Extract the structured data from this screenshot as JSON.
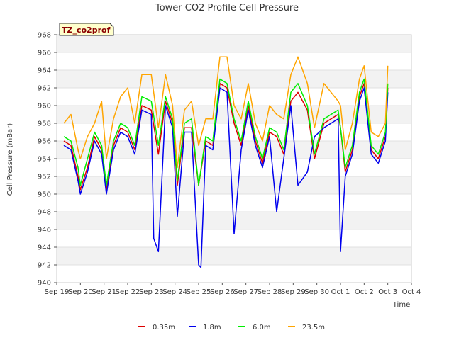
{
  "chart_data": {
    "type": "line",
    "title": "Tower CO2 Profile Cell Pressure",
    "xlabel": "Time",
    "ylabel": "Cell Pressure (mBar)",
    "badge": "TZ_co2prof",
    "ylim": [
      940,
      968
    ],
    "yticks": [
      940,
      942,
      944,
      946,
      948,
      950,
      952,
      954,
      956,
      958,
      960,
      962,
      964,
      966,
      968
    ],
    "xlim": [
      0,
      15
    ],
    "x_unit": "days since Sep 19",
    "xticks": [
      0,
      1,
      2,
      3,
      4,
      5,
      6,
      7,
      8,
      9,
      10,
      11,
      12,
      13,
      14,
      15
    ],
    "xtick_labels": [
      "Sep 19",
      "Sep 20",
      "Sep 21",
      "Sep 22",
      "Sep 23",
      "Sep 24",
      "Sep 25",
      "Sep 26",
      "Sep 27",
      "Sep 28",
      "Sep 29",
      "Sep 30",
      "Oct 1",
      "Oct 2",
      "Oct 3",
      "Oct 4"
    ],
    "grid": "horizontal bands",
    "legend_position": "bottom",
    "series": [
      {
        "name": "0.35m",
        "color": "#dd0000",
        "x": [
          0.3,
          0.6,
          0.9,
          1.0,
          1.3,
          1.6,
          1.9,
          2.1,
          2.4,
          2.7,
          3.0,
          3.3,
          3.6,
          4.0,
          4.3,
          4.6,
          4.9,
          5.1,
          5.4,
          5.7,
          6.0,
          6.3,
          6.6,
          6.9,
          7.2,
          7.5,
          7.8,
          8.1,
          8.4,
          8.7,
          9.0,
          9.3,
          9.6,
          9.9,
          10.2,
          10.6,
          10.9,
          11.3,
          11.9,
          12.0,
          12.2,
          12.5,
          12.8,
          13.0,
          13.3,
          13.6,
          13.9,
          14.0
        ],
        "y": [
          956.0,
          955.5,
          952.0,
          950.5,
          953.0,
          956.5,
          955.0,
          950.5,
          955.5,
          957.5,
          957.0,
          955.0,
          960.0,
          959.5,
          954.5,
          960.5,
          958.0,
          951.0,
          957.5,
          957.5,
          951.0,
          956.0,
          955.5,
          962.5,
          962.0,
          958.0,
          955.5,
          960.0,
          956.0,
          953.5,
          957.0,
          956.5,
          954.5,
          960.5,
          961.5,
          959.5,
          954.0,
          958.0,
          959.0,
          957.5,
          952.5,
          955.0,
          961.0,
          962.5,
          955.0,
          954.0,
          956.5,
          962.0
        ]
      },
      {
        "name": "1.8m",
        "color": "#0000ee",
        "x": [
          0.3,
          0.6,
          0.9,
          1.0,
          1.3,
          1.6,
          1.9,
          2.1,
          2.4,
          2.7,
          3.0,
          3.3,
          3.6,
          4.0,
          4.1,
          4.3,
          4.6,
          4.9,
          5.1,
          5.4,
          5.7,
          6.0,
          6.1,
          6.3,
          6.6,
          6.9,
          7.2,
          7.5,
          7.8,
          8.1,
          8.4,
          8.7,
          9.0,
          9.3,
          9.6,
          9.9,
          10.2,
          10.6,
          10.9,
          11.3,
          11.9,
          12.0,
          12.2,
          12.5,
          12.8,
          13.0,
          13.3,
          13.6,
          13.9,
          14.0
        ],
        "y": [
          955.5,
          955.0,
          951.5,
          950.0,
          952.5,
          956.0,
          954.5,
          950.0,
          955.0,
          957.0,
          956.5,
          954.5,
          959.5,
          959.0,
          945.0,
          943.5,
          960.0,
          957.5,
          947.5,
          957.0,
          957.0,
          942.0,
          941.7,
          955.5,
          955.0,
          962.0,
          961.5,
          945.5,
          955.0,
          959.5,
          955.5,
          953.0,
          956.5,
          948.0,
          954.0,
          960.0,
          951.0,
          952.5,
          956.5,
          957.5,
          958.5,
          943.5,
          952.0,
          954.5,
          960.5,
          962.0,
          954.5,
          953.5,
          956.0,
          961.5
        ]
      },
      {
        "name": "6.0m",
        "color": "#00ee00",
        "x": [
          0.3,
          0.6,
          0.9,
          1.0,
          1.3,
          1.6,
          1.9,
          2.1,
          2.4,
          2.7,
          3.0,
          3.3,
          3.6,
          4.0,
          4.3,
          4.6,
          4.9,
          5.1,
          5.4,
          5.7,
          6.0,
          6.3,
          6.6,
          6.9,
          7.2,
          7.5,
          7.8,
          8.1,
          8.4,
          8.7,
          9.0,
          9.3,
          9.6,
          9.9,
          10.2,
          10.6,
          10.9,
          11.3,
          11.9,
          12.0,
          12.2,
          12.5,
          12.8,
          13.0,
          13.3,
          13.6,
          13.9,
          14.0
        ],
        "y": [
          956.5,
          956.0,
          953.0,
          951.0,
          954.0,
          957.0,
          955.5,
          951.0,
          956.0,
          958.0,
          957.5,
          955.5,
          961.0,
          960.5,
          955.5,
          961.0,
          958.5,
          951.5,
          958.0,
          958.5,
          951.0,
          956.5,
          956.0,
          963.0,
          962.5,
          958.5,
          956.0,
          960.5,
          956.5,
          954.0,
          957.5,
          957.0,
          955.0,
          961.5,
          962.5,
          960.0,
          954.5,
          958.5,
          959.5,
          957.5,
          953.0,
          955.5,
          961.5,
          963.0,
          955.5,
          954.5,
          957.0,
          962.5
        ]
      },
      {
        "name": "23.5m",
        "color": "#ffa500",
        "x": [
          0.3,
          0.6,
          0.9,
          1.0,
          1.3,
          1.6,
          1.9,
          2.1,
          2.4,
          2.7,
          3.0,
          3.3,
          3.6,
          4.0,
          4.3,
          4.6,
          4.9,
          5.1,
          5.4,
          5.7,
          6.0,
          6.3,
          6.6,
          6.9,
          7.2,
          7.5,
          7.8,
          8.1,
          8.4,
          8.7,
          9.0,
          9.3,
          9.6,
          9.9,
          10.2,
          10.6,
          10.9,
          11.3,
          11.9,
          12.0,
          12.2,
          12.5,
          12.8,
          13.0,
          13.3,
          13.6,
          13.9,
          14.0
        ],
        "y": [
          958.0,
          959.0,
          955.0,
          954.0,
          956.5,
          958.0,
          960.5,
          954.0,
          958.5,
          961.0,
          962.0,
          958.0,
          963.5,
          963.5,
          957.5,
          963.5,
          960.0,
          953.0,
          959.5,
          960.5,
          955.5,
          958.5,
          958.5,
          965.5,
          965.5,
          960.0,
          958.5,
          962.5,
          958.0,
          956.0,
          960.0,
          959.0,
          958.5,
          963.5,
          965.5,
          962.5,
          957.5,
          962.5,
          960.5,
          960.0,
          955.0,
          958.0,
          963.0,
          964.5,
          957.0,
          956.5,
          958.0,
          964.5
        ]
      }
    ]
  }
}
